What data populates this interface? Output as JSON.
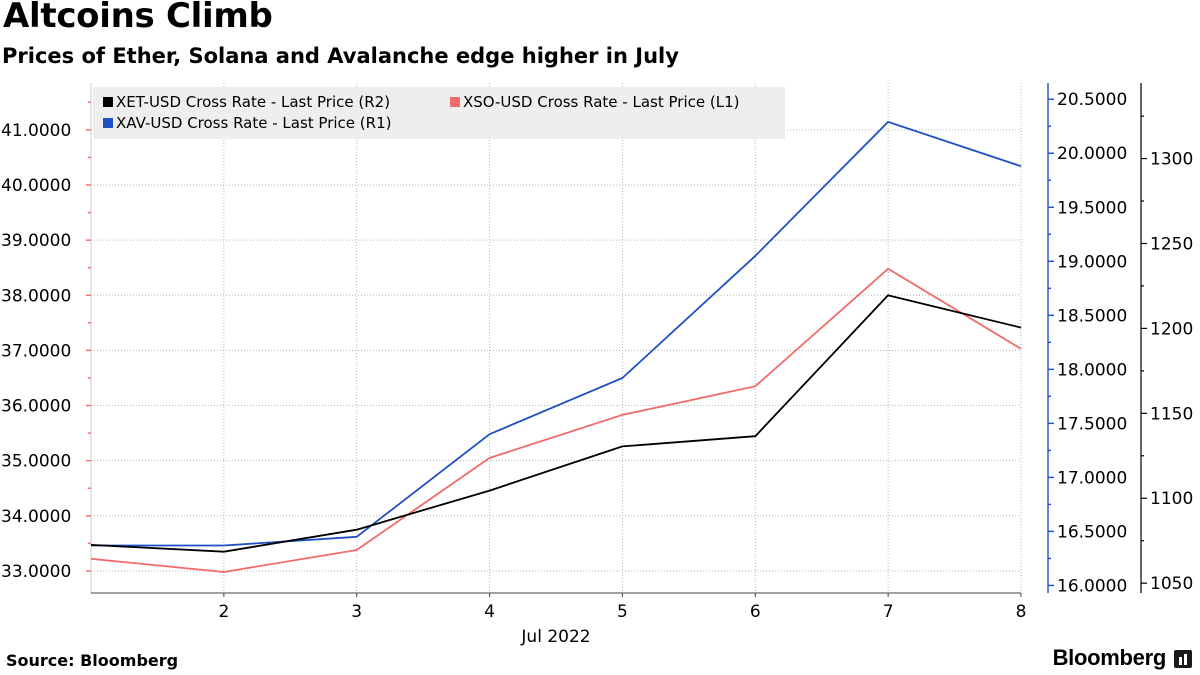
{
  "title": "Altcoins Climb",
  "subtitle": "Prices of Ether, Solana and Avalanche edge higher in July",
  "source": "Source: Bloomberg",
  "brand": "Bloomberg",
  "colors": {
    "xet": "#000000",
    "xso": "#f26b6b",
    "xav": "#1f4fc4",
    "grid": "#b5b5b5",
    "legend_bg": "#eeeeee"
  },
  "chart_data": {
    "type": "line",
    "title": "Altcoins Climb",
    "subtitle": "Prices of Ether, Solana and Avalanche edge higher in July",
    "x": [
      1,
      2,
      3,
      4,
      5,
      6,
      7,
      8
    ],
    "x_tick_labels": [
      "2",
      "3",
      "4",
      "5",
      "6",
      "7",
      "8"
    ],
    "x_tick_values": [
      2,
      3,
      4,
      5,
      6,
      7,
      8
    ],
    "xlabel": "Jul 2022",
    "xlim": [
      1,
      8
    ],
    "axes": {
      "L1": {
        "ylim": [
          32.6,
          41.85
        ],
        "ticks": [
          33,
          34,
          35,
          36,
          37,
          38,
          39,
          40,
          41
        ],
        "tick_labels": [
          "33.0000",
          "34.0000",
          "35.0000",
          "36.0000",
          "37.0000",
          "38.0000",
          "39.0000",
          "40.0000",
          "41.0000"
        ]
      },
      "R1": {
        "ylim": [
          15.93,
          20.65
        ],
        "ticks": [
          16,
          16.5,
          17,
          17.5,
          18,
          18.5,
          19,
          19.5,
          20,
          20.5
        ],
        "tick_labels": [
          "16.0000",
          "16.5000",
          "17.0000",
          "17.5000",
          "18.0000",
          "18.5000",
          "19.0000",
          "19.5000",
          "20.0000",
          "20.5000"
        ]
      },
      "R2": {
        "ylim": [
          1044.2,
          1344.5
        ],
        "ticks": [
          1050,
          1100,
          1150,
          1200,
          1250,
          1300
        ],
        "tick_labels": [
          "1050",
          "1100",
          "1150",
          "1200",
          "1250",
          "1300"
        ]
      }
    },
    "series": [
      {
        "name": "XET-USD Cross Rate - Last Price (R2)",
        "key": "xet",
        "axis": "R2",
        "values": [
          1072.5,
          1068.5,
          1081.5,
          1104.5,
          1130.5,
          1136.5,
          1219.5,
          1200.5
        ]
      },
      {
        "name": "XSO-USD Cross Rate - Last Price (L1)",
        "key": "xso",
        "axis": "L1",
        "values": [
          33.22,
          32.98,
          33.38,
          35.05,
          35.83,
          36.35,
          38.48,
          37.03
        ]
      },
      {
        "name": "XAV-USD Cross Rate - Last Price (R1)",
        "key": "xav",
        "axis": "R1",
        "values": [
          16.37,
          16.37,
          16.45,
          17.4,
          17.92,
          19.05,
          20.29,
          19.88
        ]
      }
    ],
    "legend_position": "top-left",
    "grid": true
  }
}
